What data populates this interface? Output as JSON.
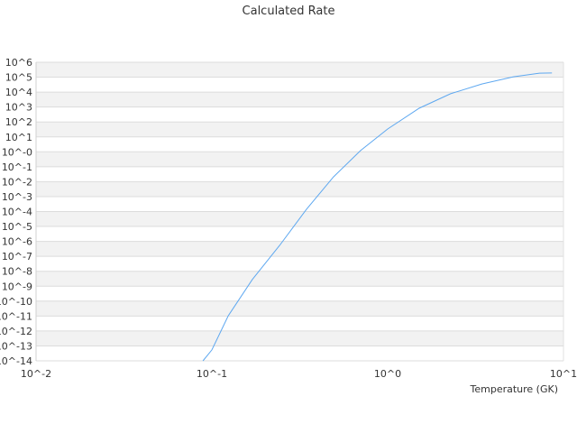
{
  "chart_data": {
    "type": "line",
    "title": "Calculated Rate",
    "xlabel": "Temperature (GK)",
    "ylabel": "",
    "x_scale": "log",
    "y_scale": "log",
    "xlim": [
      0.01,
      10
    ],
    "ylim": [
      1e-14,
      1000000.0
    ],
    "x_tick_labels": [
      "10^-2",
      "10^-1",
      "10^0",
      "10^1"
    ],
    "y_tick_labels": [
      "10^6",
      "10^5",
      "10^4",
      "10^3",
      "10^2",
      "10^1",
      "10^-0",
      "10^-1",
      "10^-2",
      "10^-3",
      "10^-4",
      "10^-5",
      "10^-6",
      "10^-7",
      "10^-8",
      "10^-9",
      "10^-10",
      "10^-11",
      "10^-12",
      "10^-13",
      "10^-14"
    ],
    "grid": "horizontal alternating bands",
    "legend": "none",
    "series": [
      {
        "color": "#5ea8f0",
        "x": [
          0.089,
          0.1,
          0.124,
          0.17,
          0.243,
          0.345,
          0.492,
          0.7,
          1.0,
          1.51,
          2.28,
          3.43,
          5.2,
          7.3,
          8.6
        ],
        "y": [
          1e-14,
          5.4e-14,
          1.05e-11,
          2.8e-09,
          5.4e-07,
          0.00014,
          0.021,
          1.2,
          34,
          830,
          7800,
          35000,
          107000,
          186000,
          190000
        ]
      }
    ]
  }
}
